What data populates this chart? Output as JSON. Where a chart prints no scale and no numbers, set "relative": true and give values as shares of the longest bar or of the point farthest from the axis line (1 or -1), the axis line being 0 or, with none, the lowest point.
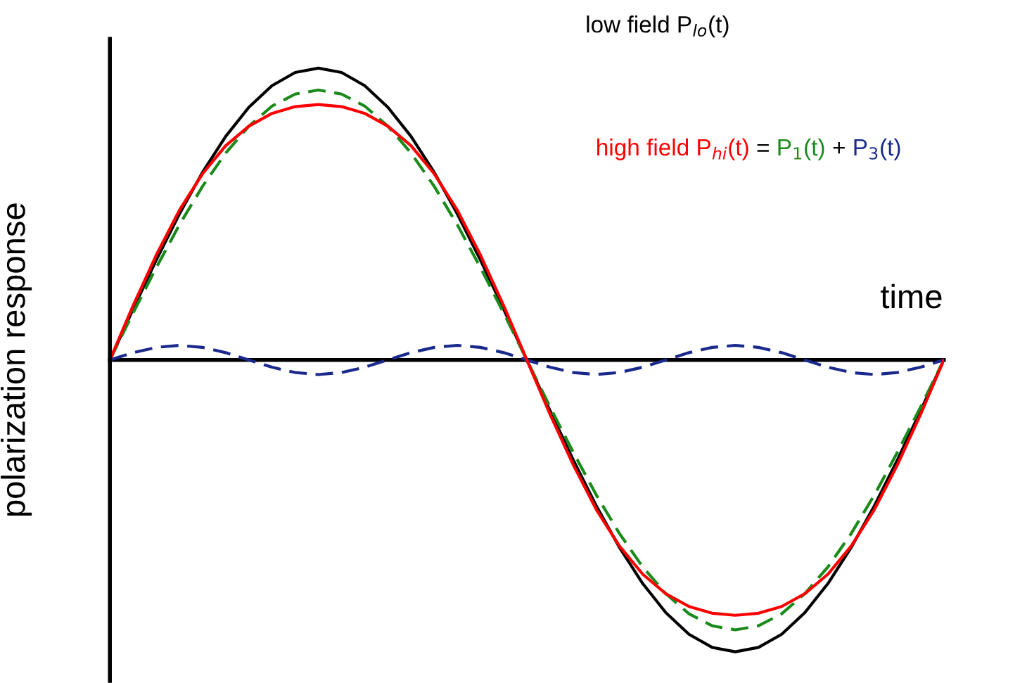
{
  "chart_data": {
    "type": "line",
    "relative": true,
    "ylabel": "polarization response",
    "xlabel": "time",
    "legend": false,
    "categories": [
      null,
      null,
      null,
      null,
      null,
      null,
      null,
      null,
      null,
      null,
      null,
      null,
      null,
      null,
      null,
      null,
      null,
      null,
      null,
      null,
      null,
      null,
      null,
      null,
      null,
      null,
      null,
      null,
      null,
      null,
      null,
      null,
      null,
      null,
      null,
      null,
      null
    ],
    "series": [
      {
        "name": "low field P$_{lo}$(t)",
        "color": "#000000",
        "line_style": "solid",
        "values": [
          0,
          0.174,
          0.342,
          0.5,
          0.643,
          0.766,
          0.866,
          0.94,
          0.985,
          1,
          0.985,
          0.94,
          0.866,
          0.766,
          0.643,
          0.5,
          0.342,
          0.174,
          0,
          -0.174,
          -0.342,
          -0.5,
          -0.643,
          -0.766,
          -0.866,
          -0.94,
          -0.985,
          -1,
          -0.985,
          -0.94,
          -0.866,
          -0.766,
          -0.643,
          -0.5,
          -0.342,
          -0.174,
          0
        ]
      },
      {
        "name": "P$_{1}$(t)",
        "color": "#1a8a1a",
        "line_style": "dashed",
        "values": [
          0,
          0.161,
          0.316,
          0.463,
          0.595,
          0.709,
          0.801,
          0.87,
          0.911,
          0.925,
          0.911,
          0.87,
          0.801,
          0.709,
          0.595,
          0.463,
          0.316,
          0.161,
          0,
          -0.161,
          -0.316,
          -0.463,
          -0.595,
          -0.709,
          -0.801,
          -0.87,
          -0.911,
          -0.925,
          -0.911,
          -0.87,
          -0.801,
          -0.709,
          -0.595,
          -0.463,
          -0.316,
          -0.161,
          0
        ]
      },
      {
        "name": "P$_{3}$(t)",
        "color": "#1a2a8c",
        "line_style": "dashed",
        "values": [
          0,
          0.025,
          0.043,
          0.05,
          0.043,
          0.025,
          0,
          -0.025,
          -0.043,
          -0.05,
          -0.043,
          -0.025,
          0,
          0.025,
          0.043,
          0.05,
          0.043,
          0.025,
          0,
          -0.025,
          -0.043,
          -0.05,
          -0.043,
          -0.025,
          0,
          0.025,
          0.043,
          0.05,
          0.043,
          0.025,
          0,
          -0.025,
          -0.043,
          -0.05,
          -0.043,
          -0.025,
          0
        ]
      },
      {
        "name": "high field P$_{hi}$(t)",
        "color": "#ff0000",
        "line_style": "solid",
        "values": [
          0,
          0.186,
          0.359,
          0.513,
          0.638,
          0.734,
          0.801,
          0.845,
          0.868,
          0.875,
          0.868,
          0.845,
          0.801,
          0.734,
          0.638,
          0.513,
          0.359,
          0.186,
          0,
          -0.186,
          -0.359,
          -0.513,
          -0.638,
          -0.734,
          -0.801,
          -0.845,
          -0.868,
          -0.875,
          -0.868,
          -0.845,
          -0.801,
          -0.734,
          -0.638,
          -0.513,
          -0.359,
          -0.186,
          0
        ]
      }
    ],
    "annotations": [
      "=",
      "+"
    ]
  }
}
